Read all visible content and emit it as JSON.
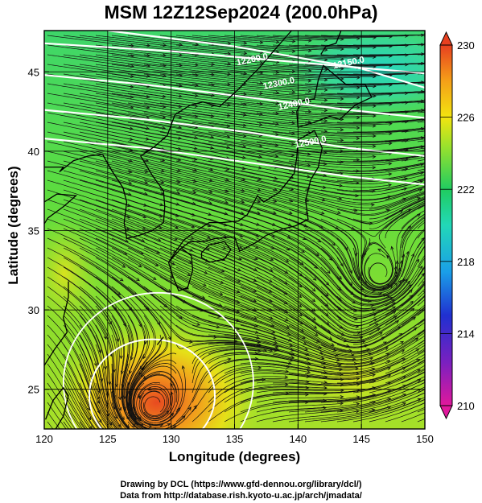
{
  "title": "MSM 12Z12Sep2024 (200.0hPa)",
  "xlabel": "Longitude (degrees)",
  "ylabel": "Latitude  (degrees)",
  "credit_line1": "Drawing by DCL (https://www.gfd-dennou.org/library/dcl/)",
  "credit_line2": "Data from http://database.rish.kyoto-u.ac.jp/arch/jmadata/",
  "map": {
    "lon_range": [
      120,
      150
    ],
    "lat_range": [
      22.5,
      47.6
    ],
    "lon_ticks": [
      {
        "v": 120,
        "label": "120"
      },
      {
        "v": 125,
        "label": "125"
      },
      {
        "v": 130,
        "label": "130"
      },
      {
        "v": 135,
        "label": "135"
      },
      {
        "v": 140,
        "label": "140"
      },
      {
        "v": 145,
        "label": "145"
      },
      {
        "v": 150,
        "label": "150"
      }
    ],
    "lat_ticks": [
      {
        "v": 25,
        "label": "25"
      },
      {
        "v": 30,
        "label": "30"
      },
      {
        "v": 35,
        "label": "35"
      },
      {
        "v": 40,
        "label": "40"
      },
      {
        "v": 45,
        "label": "45"
      }
    ],
    "contour_labels": [
      {
        "text": "12200.0",
        "lon": 135.2,
        "lat": 45.4
      },
      {
        "text": "12150.0",
        "lon": 142.8,
        "lat": 45.2
      },
      {
        "text": "12300.0",
        "lon": 137.3,
        "lat": 43.9
      },
      {
        "text": "12400.0",
        "lon": 138.5,
        "lat": 42.6
      },
      {
        "text": "12500.0",
        "lon": 139.8,
        "lat": 40.2
      }
    ],
    "colorbar": {
      "min": 210,
      "max": 230,
      "tick_labels": [
        "230",
        "226",
        "222",
        "218",
        "214",
        "210"
      ],
      "colors": [
        "#e0189c",
        "#2030d0",
        "#1a9ee8",
        "#22d8b8",
        "#20cc60",
        "#9be22c",
        "#f2e410",
        "#f5a018",
        "#e84020"
      ]
    },
    "notes": {
      "field_colors_cold": "#25d6b0",
      "field_colors_warm": "#f27a1a"
    }
  }
}
